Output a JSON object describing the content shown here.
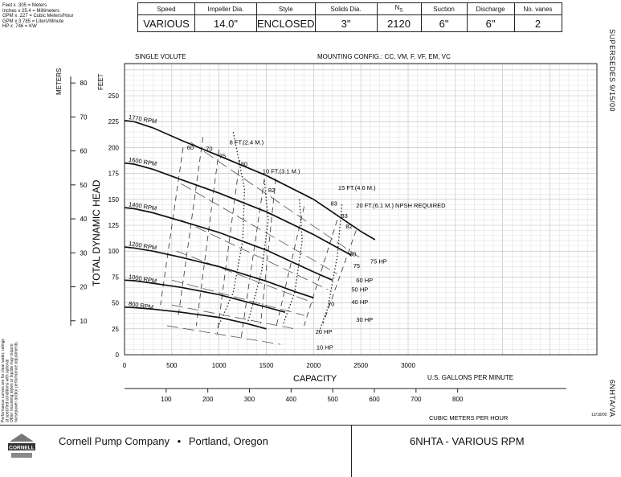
{
  "conversions": [
    "Feet x .305 = Meters",
    "Inches x 25.4 = Millimeters",
    "GPM x .227 = Cubic Meters/Hour",
    "GPM x 3.785 = Liters/Minute",
    "HP x .746 = KW"
  ],
  "spec": {
    "headers": [
      "Speed",
      "Impeller Dia.",
      "Style",
      "Solids Dia.",
      "NS",
      "Suction",
      "Discharge",
      "No. vanes"
    ],
    "values": [
      "VARIOUS",
      "14.0\"",
      "ENCLOSED",
      "3\"",
      "2120",
      "6\"",
      "6\"",
      "2"
    ]
  },
  "side": {
    "supersedes": "SUPERSEDES 9/15/00",
    "model_code": "6NHTA/VA",
    "date": "12/18/00"
  },
  "footer": {
    "company": "Cornell Pump Company",
    "bullet": "•",
    "location": "Portland, Oregon",
    "title": "6NHTA - VARIOUS RPM",
    "logo_text": "CORNELL"
  },
  "disclaimer": [
    "Performance curves are for clear water, ratings",
    "at specified conditions with optional",
    "Other mounting styles or liquids may require",
    "horsepower and/or performance adjustments."
  ],
  "chart_data": {
    "type": "line",
    "header_left": "SINGLE VOLUTE",
    "header_right": "MOUNTING CONFIG.:  CC,  VM,  F,  VF,  EM,  VC",
    "xlabel": "CAPACITY",
    "x_units": "U.S. GALLONS PER MINUTE",
    "x2_units": "CUBIC METERS PER HOUR",
    "ylabel": "TOTAL DYNAMIC HEAD",
    "y_units": "FEET",
    "y2_units": "METERS",
    "xlim": [
      0,
      3000
    ],
    "ylim": [
      0,
      250
    ],
    "x_ticks": [
      0,
      500,
      1000,
      1500,
      2000,
      2500,
      3000
    ],
    "y_ticks": [
      0,
      25,
      50,
      75,
      100,
      125,
      150,
      175,
      200,
      225,
      250
    ],
    "x2_ticks": [
      100,
      200,
      300,
      400,
      500,
      600,
      700,
      800
    ],
    "y2_ticks": [
      10,
      20,
      30,
      40,
      50,
      60,
      70,
      80
    ],
    "speed_curves": [
      {
        "name": "1770 RPM",
        "x": [
          0,
          100,
          300,
          600,
          1000,
          1500,
          2000,
          2500,
          2650
        ],
        "y": [
          226,
          225,
          219,
          207,
          192,
          173,
          150,
          119,
          111
        ]
      },
      {
        "name": "1600 RPM",
        "x": [
          0,
          100,
          300,
          600,
          1000,
          1500,
          2000,
          2400
        ],
        "y": [
          185,
          184,
          179,
          169,
          156,
          138,
          116,
          96
        ]
      },
      {
        "name": "1400 RPM",
        "x": [
          0,
          100,
          300,
          600,
          1000,
          1500,
          2000,
          2200
        ],
        "y": [
          142,
          141,
          137,
          129,
          118,
          101,
          80,
          72
        ]
      },
      {
        "name": "1200 RPM",
        "x": [
          0,
          100,
          300,
          600,
          1000,
          1500,
          1800,
          2000
        ],
        "y": [
          104,
          103,
          100,
          94,
          85,
          71,
          61,
          55
        ]
      },
      {
        "name": "1000 RPM",
        "x": [
          0,
          100,
          300,
          600,
          1000,
          1500,
          1700
        ],
        "y": [
          72,
          71.5,
          69,
          65,
          58,
          46,
          41
        ]
      },
      {
        "name": "800 RPM",
        "x": [
          0,
          100,
          300,
          600,
          1000,
          1300,
          1500
        ],
        "y": [
          46,
          45.5,
          44,
          41,
          36,
          30,
          25
        ]
      }
    ],
    "efficiency_labels": [
      "60",
      "70",
      "75",
      "80",
      "82",
      "83",
      "83",
      "82",
      "80",
      "75",
      "70"
    ],
    "npsh_labels": [
      "8 FT.(2.4 M.)",
      "10 FT.(3.1 M.)",
      "15 FT.(4.6 M.)",
      "20 FT.(6.1 M.) NPSH REQUIRED"
    ],
    "hp_labels": [
      "75 HP",
      "60 HP",
      "50 HP",
      "40 HP",
      "30 HP",
      "20 HP",
      "10 HP"
    ]
  }
}
